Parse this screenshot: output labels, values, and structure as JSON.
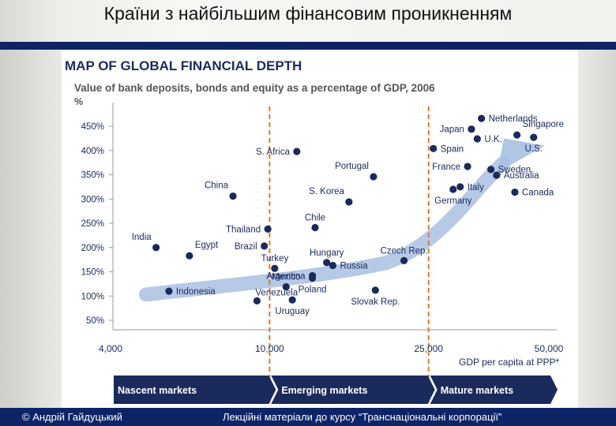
{
  "slide": {
    "title": "Країни з найбільшим фінансовим проникненням",
    "footer_left": "© Андрій Гайдуцький",
    "footer_right": "Лекційні матеріали до курсу “Транснаціональні корпорації”"
  },
  "chart_data": {
    "type": "scatter",
    "title": "MAP OF GLOBAL FINANCIAL DEPTH",
    "subtitle": "Value of bank deposits, bonds and equity as a percentage of GDP, 2006",
    "ylabel": "%",
    "xlabel": "GDP per capita at PPP*",
    "x_scale": "log",
    "xlim": [
      4000,
      50000
    ],
    "ylim": [
      20,
      470
    ],
    "x_ticks": [
      {
        "value": 4000,
        "label": "4,000"
      },
      {
        "value": 10000,
        "label": "10,000"
      },
      {
        "value": 25000,
        "label": "25,000"
      },
      {
        "value": 50000,
        "label": "50,000"
      }
    ],
    "y_ticks": [
      {
        "value": 450,
        "label": "450%"
      },
      {
        "value": 400,
        "label": "400%"
      },
      {
        "value": 350,
        "label": "350%"
      },
      {
        "value": 300,
        "label": "300%"
      },
      {
        "value": 250,
        "label": "250%"
      },
      {
        "value": 200,
        "label": "200%"
      },
      {
        "value": 150,
        "label": "150%"
      },
      {
        "value": 100,
        "label": "100%"
      },
      {
        "value": 50,
        "label": "50%"
      }
    ],
    "dividers": [
      10000,
      25000
    ],
    "segments": [
      "Nascent markets",
      "Emerging markets",
      "Mature markets"
    ],
    "colors": {
      "point": "#1b2a5c",
      "arrow": "#a9c0e2",
      "divider": "#e07b28",
      "band": "#1b2a5c",
      "text": "#1b2a5c"
    },
    "points": [
      {
        "name": "India",
        "x": 5200,
        "y": 200,
        "label_pos": "top-left"
      },
      {
        "name": "Egypt",
        "x": 6300,
        "y": 183,
        "label_pos": "top-right"
      },
      {
        "name": "Indonesia",
        "x": 5600,
        "y": 110,
        "label_pos": "right"
      },
      {
        "name": "China",
        "x": 8100,
        "y": 306,
        "label_pos": "top-left"
      },
      {
        "name": "Venezuela",
        "x": 9300,
        "y": 90,
        "label_pos": "top-right-low"
      },
      {
        "name": "Thailand",
        "x": 9900,
        "y": 238,
        "label_pos": "left"
      },
      {
        "name": "Brazil",
        "x": 9700,
        "y": 203,
        "label_pos": "left"
      },
      {
        "name": "Turkey",
        "x": 10300,
        "y": 157,
        "label_pos": "top"
      },
      {
        "name": "S. Africa",
        "x": 11700,
        "y": 398,
        "label_pos": "left"
      },
      {
        "name": "Mexico",
        "x": 11000,
        "y": 119,
        "label_pos": "top"
      },
      {
        "name": "Uruguay",
        "x": 11400,
        "y": 92,
        "label_pos": "bottom"
      },
      {
        "name": "Chile",
        "x": 13000,
        "y": 241,
        "label_pos": "top"
      },
      {
        "name": "Argentina",
        "x": 12800,
        "y": 142,
        "label_pos": "left"
      },
      {
        "name": "Poland",
        "x": 12800,
        "y": 137,
        "label_pos": "bottom"
      },
      {
        "name": "Hungary",
        "x": 13900,
        "y": 169,
        "label_pos": "top"
      },
      {
        "name": "Russia",
        "x": 14400,
        "y": 163,
        "label_pos": "right"
      },
      {
        "name": "S. Korea",
        "x": 15800,
        "y": 294,
        "label_pos": "top-left"
      },
      {
        "name": "Portugal",
        "x": 18200,
        "y": 346,
        "label_pos": "top-left"
      },
      {
        "name": "Slovak Rep.",
        "x": 18400,
        "y": 112,
        "label_pos": "bottom"
      },
      {
        "name": "Czech Rep.",
        "x": 21700,
        "y": 173,
        "label_pos": "top"
      },
      {
        "name": "Spain",
        "x": 25700,
        "y": 404,
        "label_pos": "right"
      },
      {
        "name": "Germany",
        "x": 28800,
        "y": 320,
        "label_pos": "bottom"
      },
      {
        "name": "France",
        "x": 31300,
        "y": 367,
        "label_pos": "left"
      },
      {
        "name": "Italy",
        "x": 30000,
        "y": 325,
        "label_pos": "right"
      },
      {
        "name": "Japan",
        "x": 32000,
        "y": 444,
        "label_pos": "left"
      },
      {
        "name": "U.K.",
        "x": 33100,
        "y": 424,
        "label_pos": "right"
      },
      {
        "name": "Netherlands",
        "x": 33900,
        "y": 466,
        "label_pos": "right"
      },
      {
        "name": "Sweden",
        "x": 35800,
        "y": 361,
        "label_pos": "right"
      },
      {
        "name": "Australia",
        "x": 37000,
        "y": 349,
        "label_pos": "right"
      },
      {
        "name": "Singapore",
        "x": 41600,
        "y": 432,
        "label_pos": "top-right"
      },
      {
        "name": "Canada",
        "x": 41100,
        "y": 314,
        "label_pos": "right"
      },
      {
        "name": "U.S.",
        "x": 45800,
        "y": 427,
        "label_pos": "bottom"
      }
    ]
  }
}
